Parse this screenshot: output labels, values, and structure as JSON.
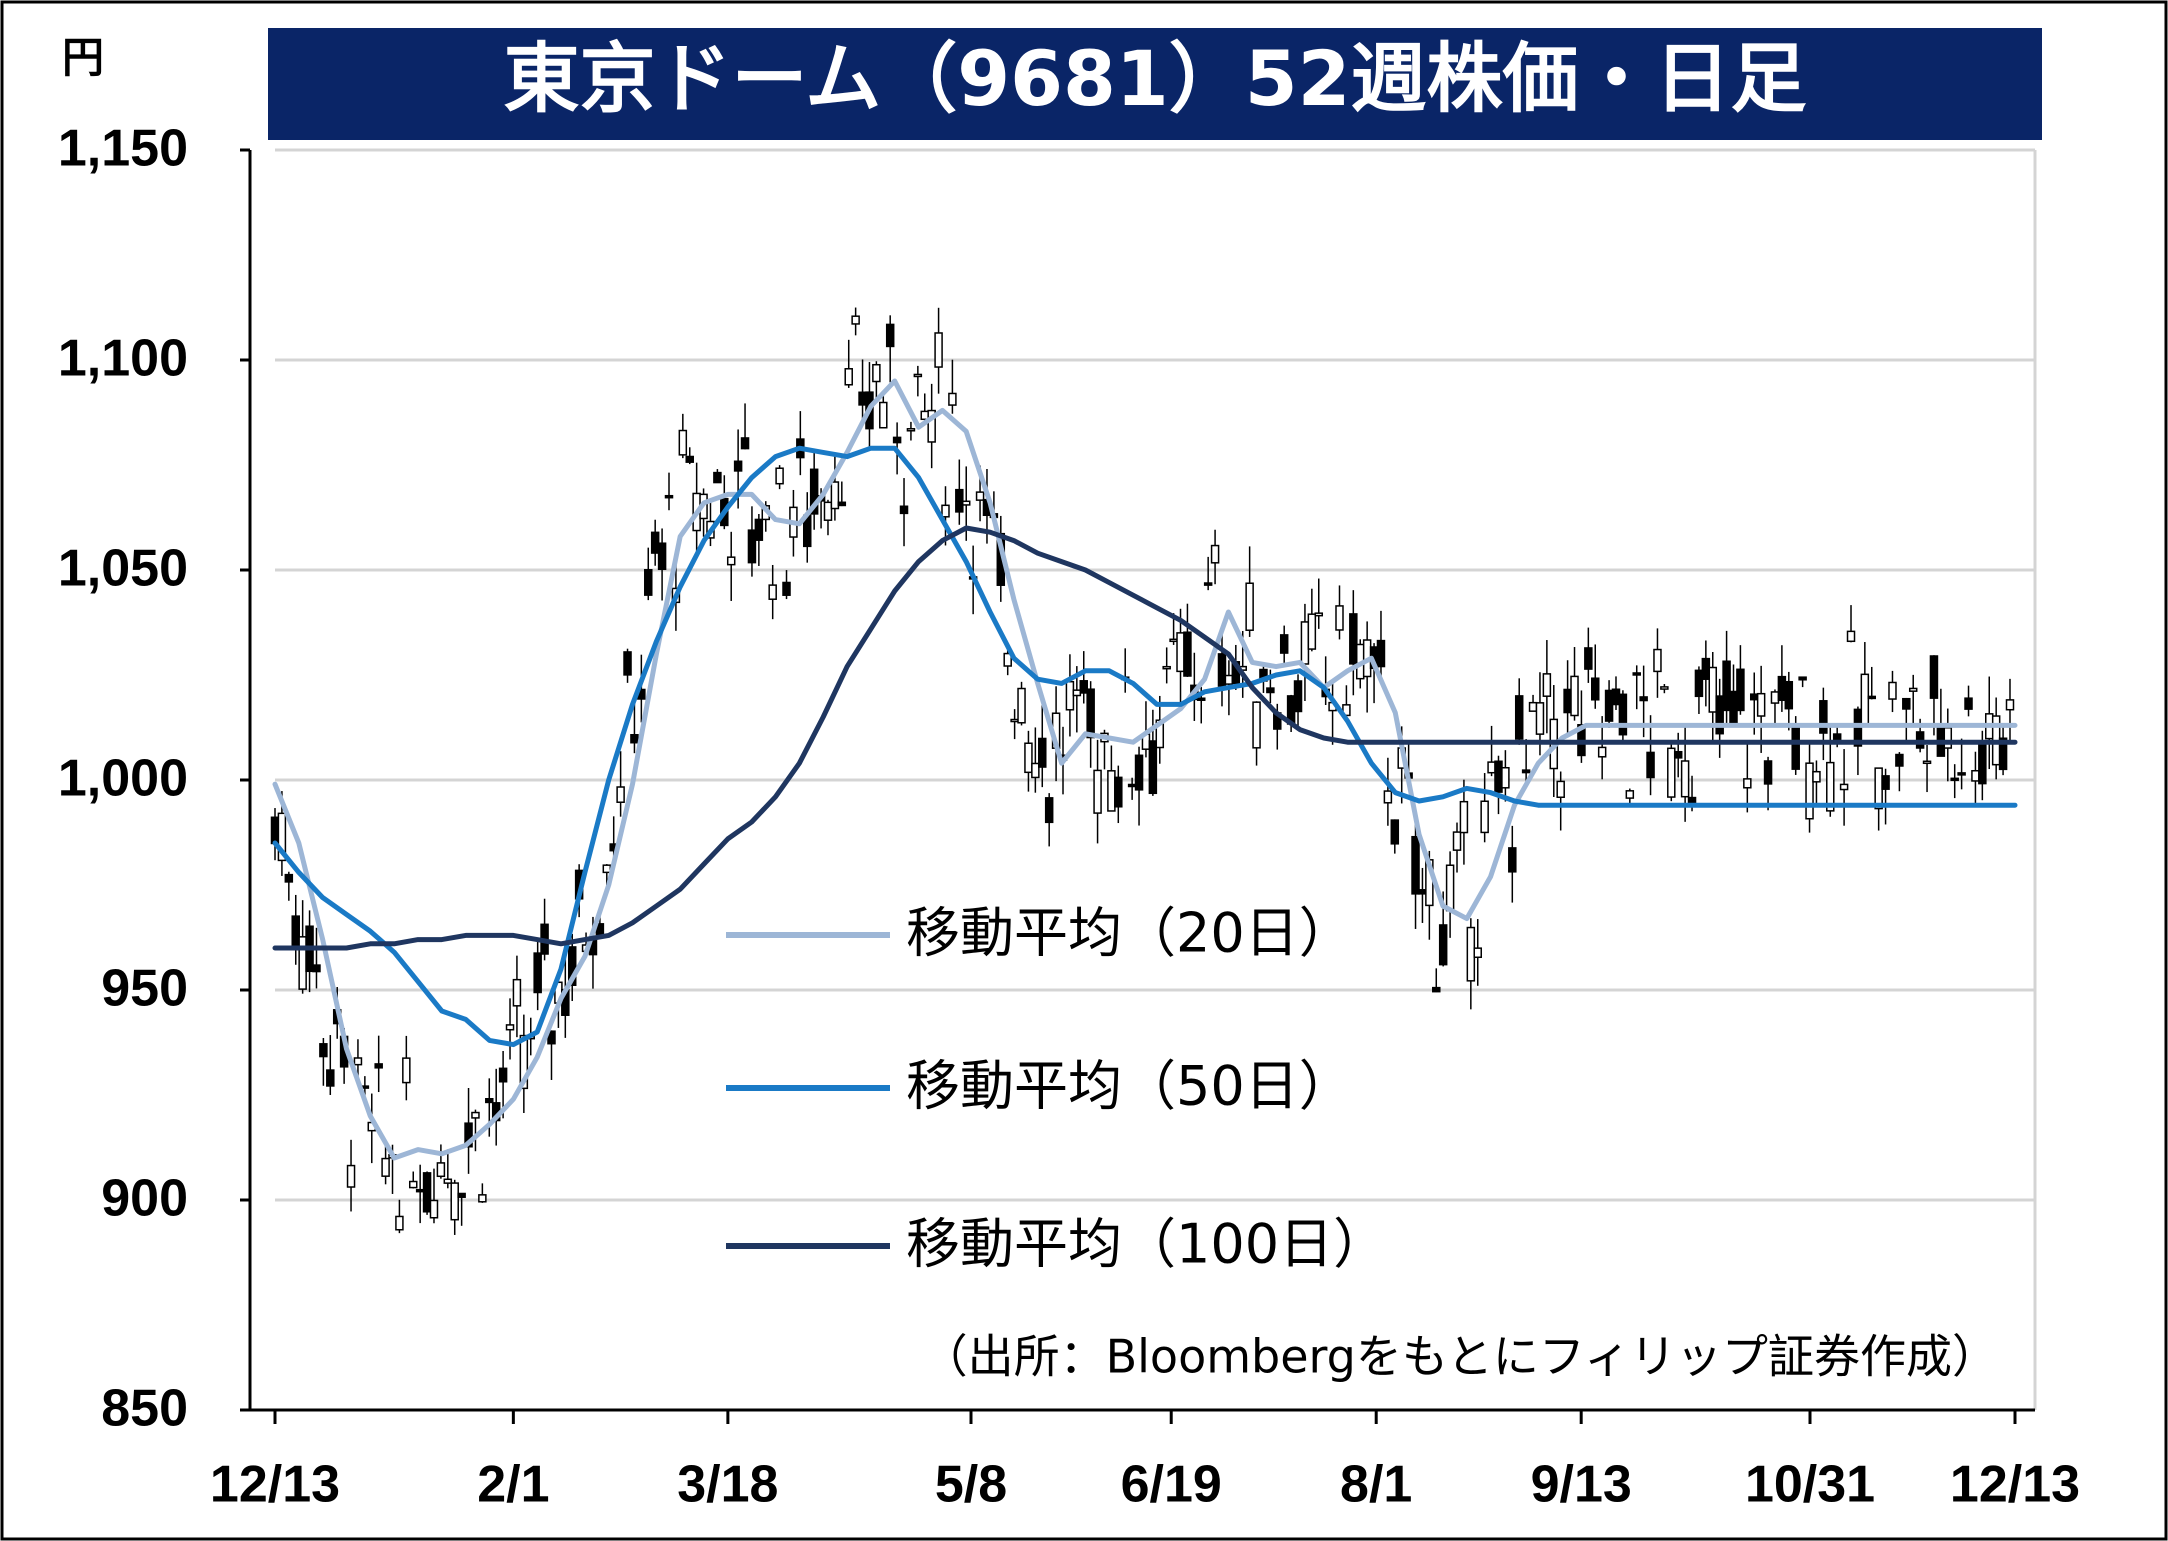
{
  "chart_data": {
    "type": "candlestick",
    "title": "東京ドーム（9681）52週株価・日足",
    "y_unit": "円",
    "ylim": [
      850,
      1150
    ],
    "y_ticks": [
      "850",
      "900",
      "950",
      "1,000",
      "1,050",
      "1,100",
      "1,150"
    ],
    "y_tick_values": [
      850,
      900,
      950,
      1000,
      1050,
      1100,
      1150
    ],
    "x_ticks": [
      "12/13",
      "2/1",
      "3/18",
      "5/8",
      "6/19",
      "8/1",
      "9/13",
      "10/31",
      "12/13"
    ],
    "x_tick_days": [
      0,
      50,
      95,
      146,
      188,
      231,
      274,
      322,
      365
    ],
    "grid": true,
    "legend_position": "center-right",
    "colors": {
      "title_bg": "#0a2567",
      "ma20": "#9db6d6",
      "ma50": "#1a7ac6",
      "ma100": "#1f3660",
      "candle_outline": "#000000",
      "candle_up_fill": "#ffffff",
      "candle_down_fill": "#000000",
      "grid": "#d4d4d4"
    },
    "source_note": "（出所：Bloombergをもとにフィリップ証券作成）",
    "series": [
      {
        "name": "移動平均（20日）",
        "key": "ma20",
        "x": [
          0,
          5,
          10,
          15,
          20,
          25,
          30,
          35,
          40,
          45,
          50,
          55,
          60,
          65,
          70,
          75,
          80,
          85,
          90,
          95,
          100,
          105,
          110,
          115,
          120,
          125,
          130,
          135,
          140,
          145,
          150,
          155,
          160,
          165,
          170,
          175,
          180,
          185,
          190,
          195,
          200,
          205,
          210,
          215,
          220,
          225,
          230,
          235,
          240,
          245,
          250,
          255,
          260,
          265,
          270,
          275,
          280,
          285,
          290,
          295,
          300,
          305,
          310,
          315,
          320,
          325,
          330,
          335,
          340,
          345,
          350,
          355,
          360,
          365
        ],
        "values": [
          999,
          985,
          962,
          936,
          920,
          910,
          912,
          911,
          913,
          918,
          924,
          934,
          948,
          958,
          975,
          999,
          1030,
          1058,
          1066,
          1068,
          1068,
          1062,
          1061,
          1068,
          1078,
          1089,
          1095,
          1084,
          1088,
          1083,
          1066,
          1043,
          1023,
          1004,
          1011,
          1010,
          1009,
          1013,
          1017,
          1024,
          1040,
          1028,
          1027,
          1028,
          1022,
          1026,
          1029,
          1016,
          987,
          970,
          967,
          977,
          994,
          1004,
          1010,
          1013,
          1013,
          1013,
          1013,
          1013,
          1013,
          1013,
          1013,
          1013,
          1013,
          1013,
          1013,
          1013,
          1013,
          1013,
          1013,
          1013,
          1013,
          1013
        ]
      },
      {
        "name": "移動平均（50日）",
        "key": "ma50",
        "x": [
          0,
          5,
          10,
          15,
          20,
          25,
          30,
          35,
          40,
          45,
          50,
          55,
          60,
          65,
          70,
          75,
          80,
          85,
          90,
          95,
          100,
          105,
          110,
          115,
          120,
          125,
          130,
          135,
          140,
          145,
          150,
          155,
          160,
          165,
          170,
          175,
          180,
          185,
          190,
          195,
          200,
          205,
          210,
          215,
          220,
          225,
          230,
          235,
          240,
          245,
          250,
          255,
          260,
          265,
          270,
          275,
          280,
          285,
          290,
          295,
          300,
          305,
          310,
          315,
          320,
          325,
          330,
          335,
          340,
          345,
          350,
          355,
          360,
          365
        ],
        "values": [
          985,
          978,
          972,
          968,
          964,
          959,
          952,
          945,
          943,
          938,
          937,
          940,
          955,
          978,
          1000,
          1018,
          1033,
          1046,
          1057,
          1065,
          1072,
          1077,
          1079,
          1078,
          1077,
          1079,
          1079,
          1072,
          1062,
          1052,
          1040,
          1029,
          1024,
          1023,
          1026,
          1026,
          1023,
          1018,
          1018,
          1021,
          1022,
          1023,
          1025,
          1026,
          1022,
          1014,
          1004,
          997,
          995,
          996,
          998,
          997,
          995,
          994,
          994,
          994,
          994,
          994,
          994,
          994,
          994,
          994,
          994,
          994,
          994,
          994,
          994,
          994,
          994,
          994,
          994,
          994,
          994,
          994
        ]
      },
      {
        "name": "移動平均（100日）",
        "key": "ma100",
        "x": [
          0,
          5,
          10,
          15,
          20,
          25,
          30,
          35,
          40,
          45,
          50,
          55,
          60,
          65,
          70,
          75,
          80,
          85,
          90,
          95,
          100,
          105,
          110,
          115,
          120,
          125,
          130,
          135,
          140,
          145,
          150,
          155,
          160,
          165,
          170,
          175,
          180,
          185,
          190,
          195,
          200,
          205,
          210,
          215,
          220,
          225,
          230,
          235,
          240,
          245,
          250,
          255,
          260,
          265,
          270,
          275,
          280,
          285,
          290,
          295,
          300,
          305,
          310,
          315,
          320,
          325,
          330,
          335,
          340,
          345,
          350,
          355,
          360,
          365
        ],
        "values": [
          960,
          960,
          960,
          960,
          961,
          961,
          962,
          962,
          963,
          963,
          963,
          962,
          961,
          962,
          963,
          966,
          970,
          974,
          980,
          986,
          990,
          996,
          1004,
          1015,
          1027,
          1036,
          1045,
          1052,
          1057,
          1060,
          1059,
          1057,
          1054,
          1052,
          1050,
          1047,
          1044,
          1041,
          1038,
          1034,
          1030,
          1022,
          1016,
          1012,
          1010,
          1009,
          1009,
          1009,
          1009,
          1009,
          1009,
          1009,
          1009,
          1009,
          1009,
          1009,
          1009,
          1009,
          1009,
          1009,
          1009,
          1009,
          1009,
          1009,
          1009,
          1009,
          1009,
          1009,
          1009,
          1009,
          1009,
          1009,
          1009,
          1009
        ]
      }
    ]
  }
}
